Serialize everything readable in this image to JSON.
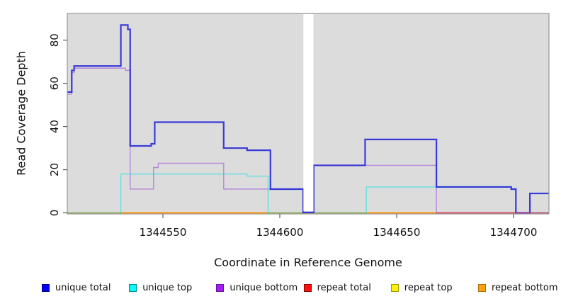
{
  "chart_data": {
    "type": "line",
    "subtype": "step-coverage",
    "title": "",
    "xlabel": "Coordinate in Reference Genome",
    "ylabel": "Read Coverage Depth",
    "xlim": [
      1344509,
      1344715
    ],
    "ylim": [
      0,
      92
    ],
    "x_ticks": [
      "1344550",
      "1344600",
      "1344650",
      "1344700"
    ],
    "x_tick_values": [
      1344550,
      1344600,
      1344650,
      1344700
    ],
    "y_ticks": [
      "0",
      "20",
      "40",
      "60",
      "80"
    ],
    "y_tick_values": [
      0,
      20,
      40,
      60,
      80
    ],
    "grid": false,
    "panel_background": "#dcdcdc",
    "panel_border": "#979797",
    "tick_color": "#5a5a5a",
    "gap_region": {
      "from": 1344610.1,
      "to": 1344614.4,
      "fill": "#ffffff"
    },
    "series": [
      {
        "key": "repeat_top",
        "name": "repeat top",
        "stroke": "#ffe100",
        "width": 1.8,
        "points": [
          [
            1344509,
            0
          ]
        ],
        "end": 1344715
      },
      {
        "key": "repeat_total",
        "name": "repeat total",
        "stroke": "#dd2233",
        "width": 1.2,
        "points": [
          [
            1344509,
            0
          ]
        ],
        "end": 1344715
      },
      {
        "key": "repeat_bottom",
        "name": "repeat bottom",
        "stroke": "#ff9314",
        "width": 1.8,
        "points": [
          [
            1344509,
            0
          ]
        ],
        "end": 1344715
      },
      {
        "key": "unique_bottom",
        "name": "unique bottom",
        "stroke": "rgba(145,50,215,0.5)",
        "width": 1.4,
        "points": [
          [
            1344509,
            55
          ],
          [
            1344511,
            65
          ],
          [
            1344512,
            67
          ],
          [
            1344534,
            66
          ],
          [
            1344536,
            11
          ],
          [
            1344546,
            21
          ],
          [
            1344548,
            23
          ],
          [
            1344576,
            11
          ],
          [
            1344610,
            0.2
          ],
          [
            1344614.5,
            22
          ],
          [
            1344667,
            0
          ]
        ],
        "end": 1344715
      },
      {
        "key": "unique_top",
        "name": "unique top",
        "stroke": "rgba(0,225,225,0.55)",
        "width": 1.4,
        "points": [
          [
            1344509,
            0
          ],
          [
            1344532,
            18
          ],
          [
            1344586,
            17
          ],
          [
            1344595,
            0
          ],
          [
            1344637,
            12
          ],
          [
            1344699,
            11
          ],
          [
            1344701,
            0
          ]
        ],
        "end": 1344715
      },
      {
        "key": "unique_total",
        "name": "unique total",
        "stroke": "rgba(35,35,215,0.88)",
        "width": 2.2,
        "points": [
          [
            1344509,
            56
          ],
          [
            1344511,
            66
          ],
          [
            1344512,
            68
          ],
          [
            1344532,
            87
          ],
          [
            1344535,
            85
          ],
          [
            1344536,
            31
          ],
          [
            1344545,
            32
          ],
          [
            1344546.5,
            42
          ],
          [
            1344576,
            30
          ],
          [
            1344586,
            29
          ],
          [
            1344596,
            11
          ],
          [
            1344610,
            0.2
          ],
          [
            1344614.5,
            22
          ],
          [
            1344636.5,
            34
          ],
          [
            1344667,
            12
          ],
          [
            1344699,
            11
          ],
          [
            1344701,
            0
          ],
          [
            1344707,
            9
          ]
        ],
        "end": 1344715
      }
    ],
    "overlays": [
      {
        "key": "repeat_total_visible",
        "name": "repeat total baseline segment",
        "from": 1344667,
        "to": 1344715,
        "value": 0,
        "stroke": "rgba(225,60,120,0.75)",
        "width": 1.6
      }
    ],
    "legend": {
      "position": "bottom",
      "entries": [
        {
          "label": "unique total",
          "fill": "#0000f5",
          "border": "#00008b"
        },
        {
          "label": "unique top",
          "fill": "#00ffff",
          "border": "#008b8b"
        },
        {
          "label": "unique bottom",
          "fill": "#a020f0",
          "border": "#6a0dad"
        },
        {
          "label": "repeat total",
          "fill": "#ff1111",
          "border": "#8b0000"
        },
        {
          "label": "repeat top",
          "fill": "#fff200",
          "border": "#9a9a00"
        },
        {
          "label": "repeat bottom",
          "fill": "#ffa017",
          "border": "#b36b00"
        }
      ]
    }
  }
}
